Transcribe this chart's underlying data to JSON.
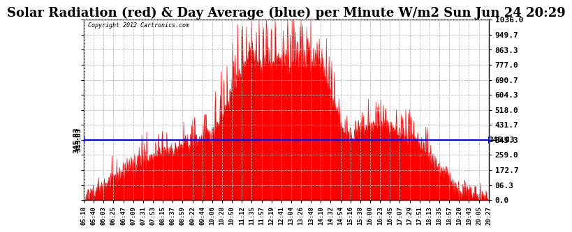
{
  "title": "Solar Radiation (red) & Day Average (blue) per Minute W/m2 Sun Jun 24 20:29",
  "copyright": "Copyright 2012 Cartronics.com",
  "ymax": 1036.0,
  "ymin": 0.0,
  "yticks": [
    0.0,
    86.3,
    172.7,
    259.0,
    345.3,
    431.7,
    518.0,
    604.3,
    690.7,
    777.0,
    863.3,
    949.7,
    1036.0
  ],
  "day_average": 345.83,
  "day_average_label": "345.83",
  "fill_color": "#ff0000",
  "line_color": "#0000ff",
  "background_color": "#ffffff",
  "grid_color": "#bbbbbb",
  "title_fontsize": 13,
  "xtick_labels": [
    "05:18",
    "05:40",
    "06:03",
    "06:25",
    "06:47",
    "07:09",
    "07:31",
    "07:53",
    "08:15",
    "08:37",
    "08:59",
    "09:22",
    "09:44",
    "10:06",
    "10:28",
    "10:50",
    "11:12",
    "11:35",
    "11:57",
    "12:19",
    "12:41",
    "13:04",
    "13:26",
    "13:48",
    "14:10",
    "14:32",
    "14:54",
    "15:16",
    "15:38",
    "16:00",
    "16:23",
    "16:45",
    "17:07",
    "17:29",
    "17:51",
    "18:13",
    "18:35",
    "18:57",
    "19:20",
    "19:43",
    "20:05",
    "20:27"
  ],
  "n_minutes": 909,
  "seed": 42
}
